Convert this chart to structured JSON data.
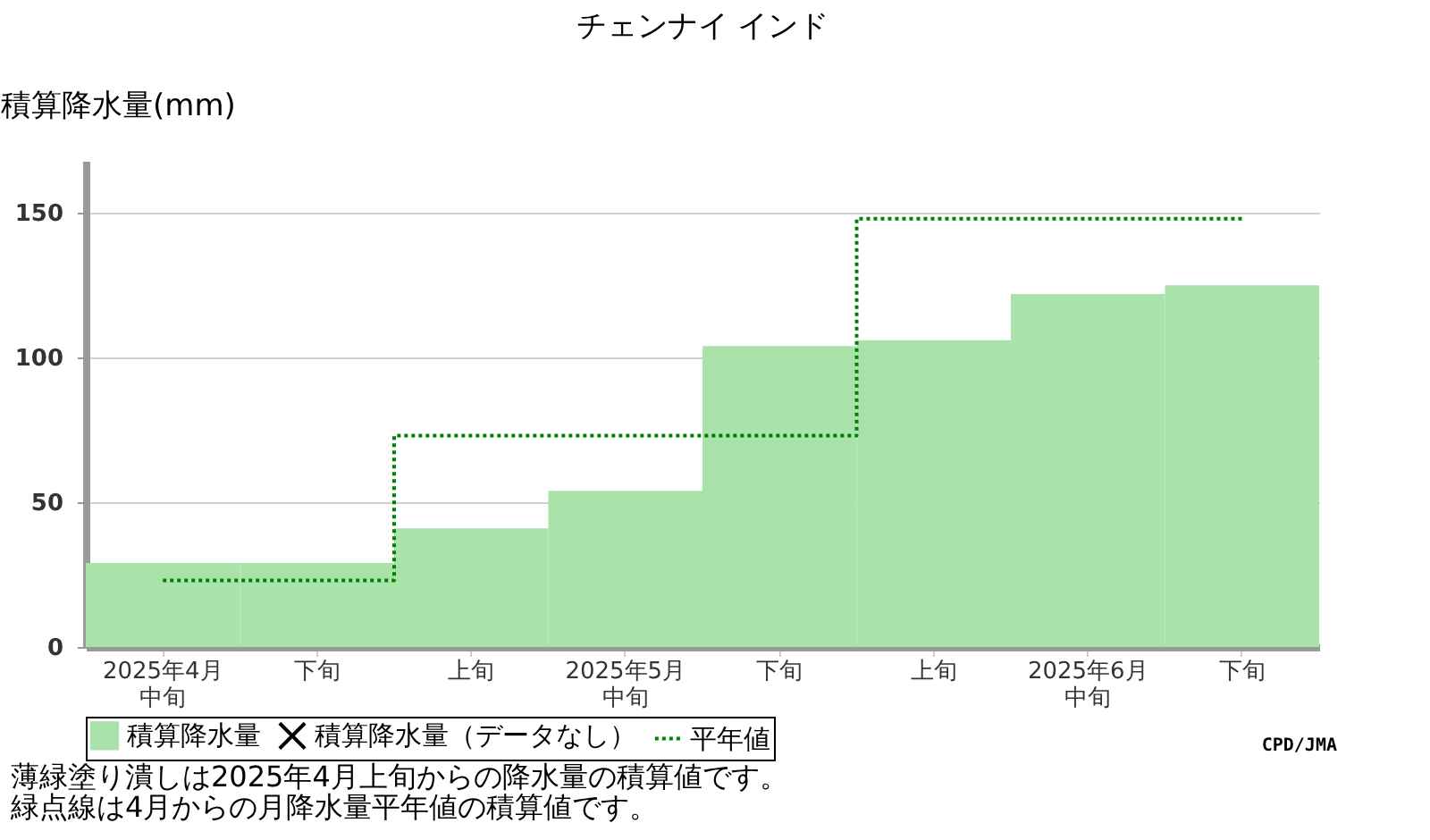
{
  "chart_data": {
    "type": "bar",
    "title": "チェンナイ インド",
    "ylabel": "積算降水量(mm)",
    "categories": [
      "2025年4月中旬",
      "下旬",
      "上旬",
      "2025年5月中旬",
      "下旬",
      "上旬",
      "2025年6月中旬",
      "下旬"
    ],
    "series": [
      {
        "name": "積算降水量",
        "color": "#aae3aa",
        "values": [
          29,
          29,
          41,
          54,
          104,
          106,
          122,
          125
        ]
      },
      {
        "name": "積算降水量（データなし）",
        "type": "scatter",
        "marker": "cross",
        "color": "#000000",
        "values": [
          null,
          null,
          null,
          null,
          null,
          null,
          null,
          null
        ]
      },
      {
        "name": "平年値",
        "type": "step",
        "line_style": "dotted",
        "color": "#008000",
        "values": [
          23,
          23,
          73,
          73,
          73,
          148,
          148,
          148
        ]
      }
    ],
    "ylim": [
      0,
      168
    ],
    "yticks": [
      0,
      50,
      100,
      150
    ],
    "grid": "y",
    "legend": "bottom",
    "annotations": [
      "CPD/JMA",
      "薄緑塗り潰しは2025年4月上旬からの降水量の積算値です。",
      "緑点線は4月からの月降水量平年値の積算値です。"
    ]
  }
}
